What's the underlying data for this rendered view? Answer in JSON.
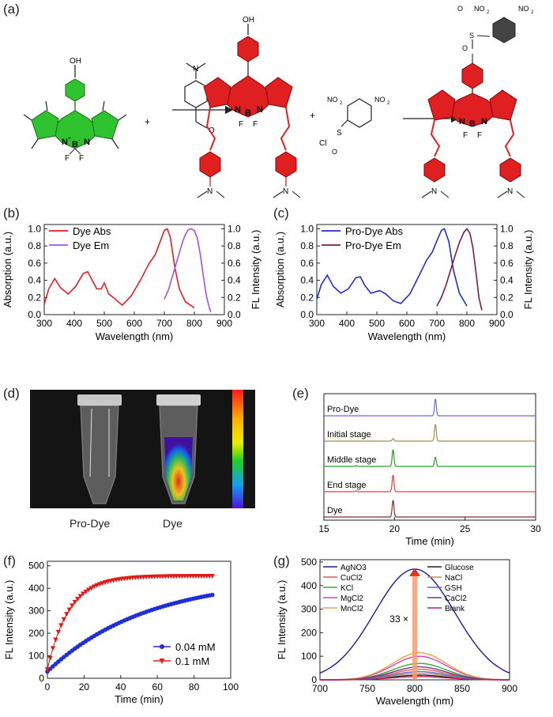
{
  "panels": {
    "a": {
      "label": "(a)",
      "plus": "+",
      "oh": "OH",
      "atoms": {
        "n": "N",
        "nplus": "N",
        "plus_sup": "+",
        "b": "B",
        "bminus": "-",
        "f": "F",
        "o": "O",
        "no2": "NO",
        "cl": "Cl",
        "s": "S",
        "two": "2"
      }
    },
    "b": {
      "label": "(b)"
    },
    "c": {
      "label": "(c)"
    },
    "d": {
      "label": "(d)",
      "left_caption": "Pro-Dye",
      "right_caption": "Dye"
    },
    "e": {
      "label": "(e)"
    },
    "f": {
      "label": "(f)"
    },
    "g": {
      "label": "(g)",
      "fold_label": "33 ×"
    }
  },
  "colors": {
    "green": "#2fc42f",
    "red": "#e02020",
    "purple": "#a24ef0",
    "blue": "#1f2fd0",
    "maroon": "#7a1a4a"
  },
  "chart_data": [
    {
      "id": "b",
      "type": "line",
      "xlabel": "Wavelength (nm)",
      "ylabel": "Absorption (a.u.)",
      "y2label": "FL Intensity (a.u.)",
      "xlim": [
        300,
        900
      ],
      "ylim": [
        0,
        1.05
      ],
      "xticks": [
        "300",
        "400",
        "500",
        "600",
        "700",
        "800",
        "900"
      ],
      "yticks": [
        "0.0",
        "0.2",
        "0.4",
        "0.6",
        "0.8",
        "1.0"
      ],
      "y2ticks": [
        "0.0",
        "0.2",
        "0.4",
        "0.6",
        "0.8",
        "1.0"
      ],
      "legend_position": "top-left",
      "series": [
        {
          "name": "Dye Abs",
          "color": "#e02020",
          "x": [
            300,
            315,
            335,
            355,
            380,
            405,
            430,
            445,
            460,
            475,
            490,
            500,
            515,
            530,
            560,
            590,
            620,
            650,
            670,
            685,
            700,
            710,
            720,
            735,
            750,
            770,
            800
          ],
          "y": [
            0.12,
            0.3,
            0.42,
            0.31,
            0.24,
            0.33,
            0.48,
            0.5,
            0.4,
            0.3,
            0.3,
            0.37,
            0.24,
            0.2,
            0.11,
            0.22,
            0.4,
            0.6,
            0.7,
            0.84,
            0.98,
            1.0,
            0.9,
            0.55,
            0.3,
            0.15,
            0.08
          ]
        },
        {
          "name": "Dye Em",
          "color": "#a24ef0",
          "x": [
            700,
            715,
            730,
            745,
            760,
            770,
            780,
            790,
            800,
            810,
            820,
            830,
            840,
            850,
            855
          ],
          "y": [
            0.18,
            0.3,
            0.48,
            0.66,
            0.84,
            0.93,
            0.99,
            1.0,
            0.98,
            0.89,
            0.7,
            0.45,
            0.22,
            0.08,
            0.03
          ]
        }
      ]
    },
    {
      "id": "c",
      "type": "line",
      "xlabel": "Wavelength (nm)",
      "ylabel": "Absorption (a.u.)",
      "y2label": "FL Intensity (a.u.)",
      "xlim": [
        300,
        900
      ],
      "ylim": [
        0,
        1.05
      ],
      "xticks": [
        "300",
        "400",
        "500",
        "600",
        "700",
        "800",
        "900"
      ],
      "yticks": [
        "0.0",
        "0.2",
        "0.4",
        "0.6",
        "0.8",
        "1.0"
      ],
      "y2ticks": [
        "0.0",
        "0.2",
        "0.4",
        "0.6",
        "0.8",
        "1.0"
      ],
      "legend_position": "top-left",
      "series": [
        {
          "name": "Pro-Dye Abs",
          "color": "#1f2fd0",
          "x": [
            300,
            315,
            335,
            355,
            380,
            405,
            430,
            445,
            460,
            480,
            500,
            510,
            530,
            555,
            580,
            610,
            640,
            665,
            685,
            700,
            715,
            725,
            740,
            755,
            775,
            800
          ],
          "y": [
            0.18,
            0.35,
            0.46,
            0.33,
            0.25,
            0.3,
            0.43,
            0.44,
            0.34,
            0.25,
            0.27,
            0.28,
            0.24,
            0.16,
            0.13,
            0.24,
            0.45,
            0.63,
            0.73,
            0.86,
            0.98,
            1.0,
            0.85,
            0.52,
            0.25,
            0.1
          ]
        },
        {
          "name": "Pro-Dye Em",
          "color": "#7a1a4a",
          "x": [
            700,
            715,
            730,
            745,
            760,
            775,
            790,
            800,
            810,
            820,
            830,
            840,
            850
          ],
          "y": [
            0.1,
            0.2,
            0.34,
            0.51,
            0.68,
            0.84,
            0.96,
            1.0,
            0.95,
            0.78,
            0.5,
            0.2,
            0.05
          ]
        }
      ]
    },
    {
      "id": "e",
      "type": "line",
      "xlabel": "Time (min)",
      "xlim": [
        15,
        30
      ],
      "xticks": [
        "15",
        "20",
        "25",
        "30"
      ],
      "series": [
        {
          "name": "Pro-Dye",
          "color": "#6a6ad8",
          "peaks": [
            [
              22.9,
              1.0
            ]
          ]
        },
        {
          "name": "Initial stage",
          "color": "#b08a40",
          "peaks": [
            [
              19.9,
              0.15
            ],
            [
              22.9,
              1.0
            ]
          ]
        },
        {
          "name": "Middle stage",
          "color": "#2aa02a",
          "peaks": [
            [
              17.3,
              0.05
            ],
            [
              19.9,
              1.0
            ],
            [
              22.9,
              0.55
            ]
          ]
        },
        {
          "name": "End stage",
          "color": "#e04040",
          "peaks": [
            [
              17.3,
              0.05
            ],
            [
              19.9,
              1.0
            ]
          ]
        },
        {
          "name": "Dye",
          "color": "#8a2a2a",
          "peaks": [
            [
              19.9,
              1.0
            ]
          ]
        }
      ]
    },
    {
      "id": "f",
      "type": "scatter",
      "xlabel": "Time (min)",
      "ylabel": "FL Intensity (a.u.)",
      "xlim": [
        0,
        100
      ],
      "ylim": [
        0,
        520
      ],
      "xticks": [
        "0",
        "20",
        "40",
        "60",
        "80",
        "100"
      ],
      "yticks": [
        "0",
        "100",
        "200",
        "300",
        "400",
        "500"
      ],
      "legend_position": "bottom-right",
      "series": [
        {
          "name": "0.04 mM",
          "color": "#1f2fd8",
          "marker": "circle",
          "model": {
            "a": 30,
            "b": 420,
            "k": 0.0185
          }
        },
        {
          "name": "0.1 mM",
          "color": "#e21b1b",
          "marker": "triangle-down",
          "model": {
            "a": 40,
            "b": 415,
            "k": 0.085
          }
        }
      ],
      "x_start": 0,
      "x_end": 90,
      "x_step": 1.5
    },
    {
      "id": "g",
      "type": "line",
      "xlabel": "Wavelength (nm)",
      "ylabel": "FL Intensity (a.u.)",
      "xlim": [
        700,
        900
      ],
      "ylim": [
        0,
        510
      ],
      "xticks": [
        "700",
        "750",
        "800",
        "850",
        "900"
      ],
      "yticks": [
        "0",
        "100",
        "200",
        "300",
        "400",
        "500"
      ],
      "legend_position": "top",
      "series": [
        {
          "name": "AgNO3",
          "color": "#1a1a9a",
          "peak": 470,
          "center": 800,
          "width": 60
        },
        {
          "name": "CuCl2",
          "color": "#e05a5a",
          "peak": 45,
          "center": 805,
          "width": 40
        },
        {
          "name": "KCl",
          "color": "#3aaa3a",
          "peak": 70,
          "center": 805,
          "width": 40
        },
        {
          "name": "MgCl2",
          "color": "#d040d0",
          "peak": 100,
          "center": 805,
          "width": 40
        },
        {
          "name": "MnCl2",
          "color": "#f0a040",
          "peak": 115,
          "center": 805,
          "width": 40
        },
        {
          "name": "Glucose",
          "color": "#222222",
          "peak": 20,
          "center": 805,
          "width": 40
        },
        {
          "name": "NaCl",
          "color": "#c89060",
          "peak": 28,
          "center": 805,
          "width": 40
        },
        {
          "name": "GSH",
          "color": "#5a6ad0",
          "peak": 35,
          "center": 805,
          "width": 40
        },
        {
          "name": "CaCl2",
          "color": "#7a3a7a",
          "peak": 55,
          "center": 805,
          "width": 40
        },
        {
          "name": "Blank",
          "color": "#c02060",
          "peak": 14,
          "center": 805,
          "width": 40
        }
      ]
    }
  ]
}
